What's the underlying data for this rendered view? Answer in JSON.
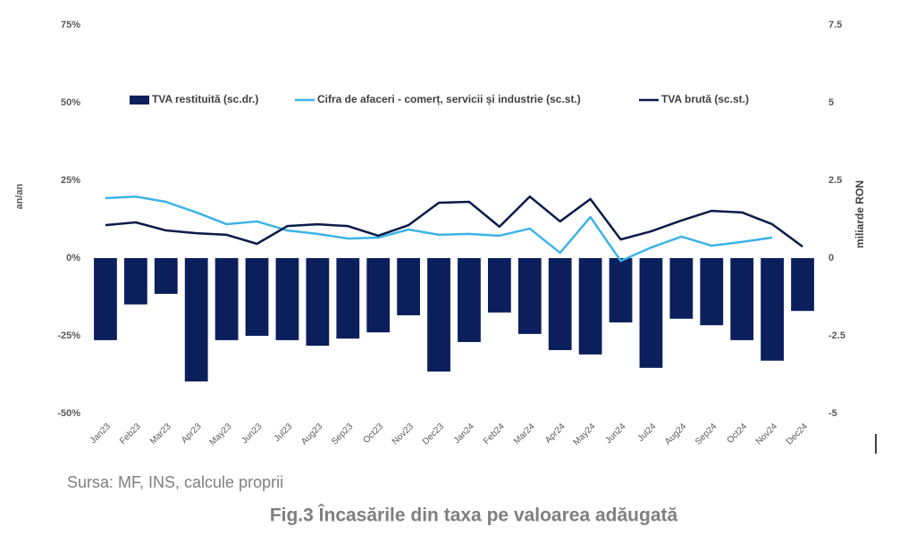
{
  "chart_data": {
    "type": "bar-line",
    "title": "Fig.3 Încasările din taxa pe valoarea adăugată",
    "source": "Sursa: MF, INS, calcule proprii",
    "ylabel": "an/an",
    "y2label": "miliarde RON",
    "categories": [
      "Jan23",
      "Feb23",
      "Mar23",
      "Apr23",
      "May23",
      "Jun23",
      "Jul23",
      "Aug23",
      "Sep23",
      "Oct23",
      "Nov23",
      "Dec23",
      "Jan24",
      "Feb24",
      "Mar24",
      "Apr24",
      "May24",
      "Jun24",
      "Jul24",
      "Aug24",
      "Sep24",
      "Oct24",
      "Nov24",
      "Dec24"
    ],
    "series": [
      {
        "name": "TVA restituită (sc.dr.)",
        "type": "bar",
        "axis": "y2",
        "color": "#0b1f5c",
        "values": [
          -2.64,
          -1.49,
          -1.15,
          -3.97,
          -2.64,
          -2.5,
          -2.64,
          -2.82,
          -2.59,
          -2.39,
          -1.84,
          -3.65,
          -2.7,
          -1.75,
          -2.44,
          -2.96,
          -3.1,
          -2.07,
          -3.53,
          -1.95,
          -2.16,
          -2.64,
          -3.3,
          -1.7
        ]
      },
      {
        "name": "Cifra de afaceri - comerț, servicii și industrie (sc.st.)",
        "type": "line",
        "axis": "y",
        "color": "#3cb4e6",
        "values": [
          19.3,
          19.8,
          18.1,
          14.7,
          10.9,
          11.8,
          8.9,
          7.8,
          6.3,
          6.6,
          9.2,
          7.5,
          7.8,
          7.2,
          9.5,
          1.7,
          13.2,
          -0.9,
          3.4,
          6.9,
          4.0,
          5.2,
          6.6,
          null
        ]
      },
      {
        "name": "TVA brută (sc.st.)",
        "type": "line",
        "axis": "y",
        "color": "#0a1a48",
        "values": [
          10.6,
          11.5,
          8.9,
          8.0,
          7.5,
          4.6,
          10.3,
          10.9,
          10.3,
          7.2,
          10.6,
          17.8,
          18.1,
          10.1,
          19.8,
          11.8,
          19.0,
          6.0,
          8.6,
          12.1,
          15.2,
          14.7,
          10.9,
          3.7
        ]
      }
    ],
    "ylim": [
      -50,
      75
    ],
    "yticks": [
      {
        "value": -50,
        "label": "-50%"
      },
      {
        "value": -25,
        "label": "-25%"
      },
      {
        "value": 0,
        "label": "0%"
      },
      {
        "value": 25,
        "label": "25%"
      },
      {
        "value": 50,
        "label": "50%"
      },
      {
        "value": 75,
        "label": "75%"
      }
    ],
    "y2lim": [
      -5,
      7.5
    ],
    "y2ticks": [
      -5,
      -2.5,
      0,
      2.5,
      5,
      7.5
    ]
  }
}
